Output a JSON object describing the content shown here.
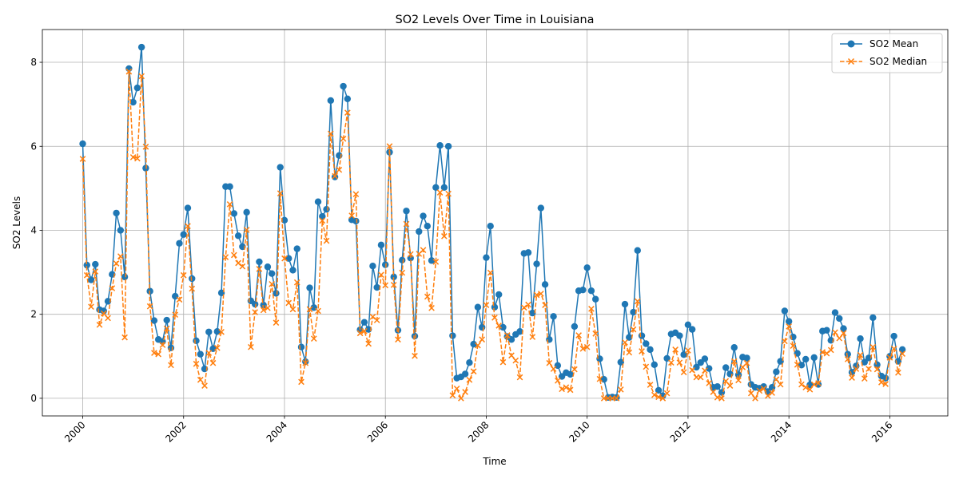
{
  "chart_data": {
    "type": "line",
    "title": "SO2 Levels Over Time in Louisiana",
    "xlabel": "Time",
    "ylabel": "SO2 Levels",
    "xlim": [
      1999.2,
      2017.15
    ],
    "ylim": [
      -0.42,
      8.78
    ],
    "x_ticks": [
      2000,
      2002,
      2004,
      2006,
      2008,
      2010,
      2012,
      2014,
      2016
    ],
    "y_ticks": [
      0,
      2,
      4,
      6,
      8
    ],
    "grid": true,
    "legend_position": "upper-right",
    "x_start": 2000,
    "x_step": 0.08333,
    "series": [
      {
        "name": "SO2 Mean",
        "color": "#1f77b4",
        "marker": "circle",
        "linestyle": "solid",
        "values": [
          6.06,
          3.17,
          2.82,
          3.19,
          2.11,
          2.08,
          2.31,
          2.95,
          4.41,
          4.0,
          2.89,
          7.85,
          7.05,
          7.39,
          8.36,
          5.48,
          2.55,
          1.85,
          1.4,
          1.35,
          1.86,
          1.2,
          2.43,
          3.69,
          3.9,
          4.53,
          2.85,
          1.37,
          1.05,
          0.7,
          1.58,
          1.18,
          1.59,
          2.51,
          5.04,
          5.04,
          4.4,
          3.87,
          3.61,
          4.43,
          2.32,
          2.24,
          3.25,
          2.22,
          3.13,
          2.97,
          2.5,
          5.5,
          4.24,
          3.33,
          3.05,
          3.56,
          1.22,
          0.87,
          2.63,
          2.16,
          4.68,
          4.33,
          4.5,
          7.09,
          5.27,
          5.78,
          7.43,
          7.13,
          4.25,
          4.22,
          1.63,
          1.81,
          1.64,
          3.15,
          2.64,
          3.65,
          3.18,
          5.86,
          2.89,
          1.62,
          3.29,
          4.46,
          3.34,
          1.48,
          3.97,
          4.34,
          4.1,
          3.28,
          5.02,
          6.02,
          5.02,
          6.0,
          1.49,
          0.48,
          0.51,
          0.58,
          0.85,
          1.29,
          2.17,
          1.69,
          3.35,
          4.1,
          2.17,
          2.47,
          1.69,
          1.47,
          1.4,
          1.52,
          1.59,
          3.45,
          3.47,
          2.03,
          3.2,
          4.53,
          2.71,
          1.4,
          1.95,
          0.78,
          0.52,
          0.61,
          0.57,
          1.71,
          2.56,
          2.58,
          3.11,
          2.56,
          2.36,
          0.94,
          0.45,
          0.02,
          0.03,
          0.02,
          0.86,
          2.24,
          1.45,
          2.05,
          3.52,
          1.49,
          1.3,
          1.16,
          0.8,
          0.19,
          0.06,
          0.95,
          1.53,
          1.56,
          1.49,
          1.04,
          1.75,
          1.64,
          0.74,
          0.85,
          0.94,
          0.71,
          0.26,
          0.28,
          0.14,
          0.73,
          0.58,
          1.21,
          0.56,
          0.98,
          0.96,
          0.33,
          0.26,
          0.24,
          0.28,
          0.16,
          0.26,
          0.63,
          0.88,
          2.08,
          1.83,
          1.46,
          1.07,
          0.79,
          0.93,
          0.32,
          0.97,
          0.33,
          1.6,
          1.62,
          1.38,
          2.04,
          1.9,
          1.66,
          1.05,
          0.62,
          0.77,
          1.42,
          0.86,
          0.96,
          1.92,
          0.8,
          0.53,
          0.48,
          1.0,
          1.48,
          0.88,
          1.16
        ]
      },
      {
        "name": "SO2 Median",
        "color": "#ff7f0e",
        "marker": "x",
        "linestyle": "dashed",
        "values": [
          5.7,
          2.93,
          2.18,
          3.02,
          1.75,
          2.02,
          1.91,
          2.62,
          3.21,
          3.38,
          1.45,
          7.78,
          5.74,
          5.71,
          7.67,
          5.99,
          2.19,
          1.08,
          1.05,
          1.27,
          1.66,
          0.79,
          1.99,
          2.35,
          2.93,
          4.1,
          2.61,
          0.82,
          0.44,
          0.3,
          1.08,
          0.84,
          1.2,
          1.58,
          3.36,
          4.62,
          3.41,
          3.22,
          3.14,
          4.01,
          1.22,
          2.05,
          3.08,
          2.1,
          2.15,
          2.72,
          1.8,
          4.88,
          3.33,
          2.27,
          2.12,
          2.76,
          0.39,
          0.84,
          2.12,
          1.42,
          2.08,
          4.23,
          3.75,
          6.3,
          5.29,
          5.44,
          6.18,
          6.8,
          4.35,
          4.86,
          1.55,
          1.6,
          1.3,
          1.94,
          1.86,
          2.94,
          2.69,
          6.0,
          2.7,
          1.4,
          2.99,
          4.15,
          3.43,
          1.01,
          3.44,
          3.53,
          2.42,
          2.15,
          3.25,
          4.9,
          3.86,
          4.87,
          0.07,
          0.23,
          0.0,
          0.15,
          0.44,
          0.64,
          1.26,
          1.4,
          2.22,
          2.99,
          1.92,
          1.73,
          0.86,
          1.5,
          1.02,
          0.9,
          0.5,
          2.16,
          2.23,
          1.46,
          2.46,
          2.49,
          2.22,
          0.84,
          0.7,
          0.42,
          0.22,
          0.26,
          0.2,
          0.69,
          1.5,
          1.18,
          1.22,
          2.13,
          1.54,
          0.46,
          0.0,
          0.0,
          0.0,
          0.0,
          0.21,
          1.33,
          1.09,
          1.64,
          2.31,
          1.12,
          0.75,
          0.32,
          0.08,
          0.03,
          0.0,
          0.12,
          0.85,
          1.16,
          0.85,
          0.62,
          1.14,
          0.67,
          0.5,
          0.5,
          0.66,
          0.36,
          0.15,
          0.02,
          0.0,
          0.41,
          0.3,
          0.88,
          0.43,
          0.74,
          0.84,
          0.12,
          0.0,
          0.18,
          0.23,
          0.06,
          0.13,
          0.45,
          0.33,
          1.36,
          1.71,
          1.25,
          0.8,
          0.33,
          0.26,
          0.21,
          0.33,
          0.36,
          1.1,
          1.07,
          1.15,
          1.57,
          1.43,
          1.55,
          0.93,
          0.49,
          0.7,
          1.03,
          0.47,
          0.7,
          1.22,
          0.69,
          0.38,
          0.34,
          0.97,
          1.18,
          0.61,
          1.06
        ]
      }
    ]
  }
}
